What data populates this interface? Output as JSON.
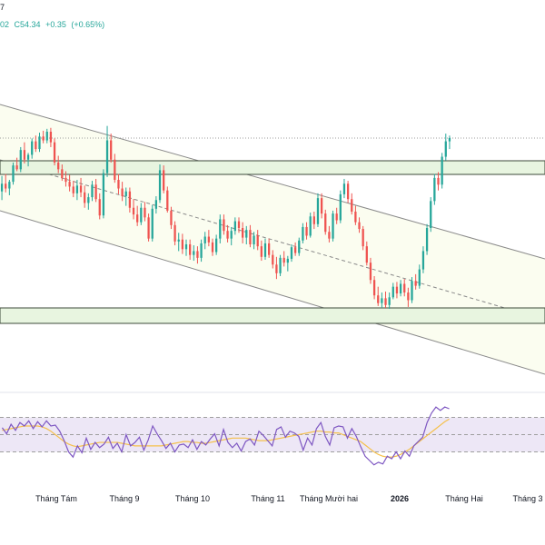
{
  "header": {
    "title_fragment": "7",
    "open_fragment": "02",
    "close_label": "C54.34",
    "change": "+0.35",
    "change_pct": "(+0.65%)"
  },
  "colors": {
    "up": "#26a69a",
    "down": "#ef5350",
    "rsi_line": "#7e57c2",
    "rsi_ma": "#f5c04b",
    "zone_fill": "#e8f5e0",
    "zone_border": "#3d4a3a",
    "channel_fill": "#fbfdf0",
    "channel_line": "#8a8a8a",
    "rsi_band": "#ede7f6"
  },
  "chart_data": [
    {
      "type": "candlestick",
      "x_axis_labels": [
        "Tháng Tám",
        "Tháng 9",
        "Tháng 10",
        "Tháng 11",
        "Tháng Mười hai",
        "2026",
        "Tháng Hai",
        "Tháng 3"
      ],
      "x_axis_bold": [
        "2026"
      ],
      "last_close": 54.34,
      "change": 0.35,
      "change_pct": 0.65,
      "annotations": [
        "resistance zone",
        "support zone",
        "descending channel",
        "channel midline (dashed)"
      ],
      "series": [
        {
          "name": "price",
          "ohlc": [
            [
              48.8,
              50.4,
              47.9,
              49.6
            ],
            [
              49.6,
              50.6,
              48.7,
              49.1
            ],
            [
              49.1,
              50.0,
              48.4,
              49.8
            ],
            [
              49.8,
              51.8,
              49.5,
              51.5
            ],
            [
              51.5,
              52.3,
              50.9,
              51.1
            ],
            [
              51.1,
              53.4,
              50.8,
              53.1
            ],
            [
              53.1,
              53.9,
              51.7,
              52.1
            ],
            [
              52.1,
              52.8,
              51.4,
              52.6
            ],
            [
              52.6,
              54.3,
              52.2,
              54.0
            ],
            [
              54.0,
              54.6,
              52.9,
              53.2
            ],
            [
              53.2,
              54.9,
              52.9,
              54.5
            ],
            [
              54.5,
              55.1,
              53.8,
              54.1
            ],
            [
              54.1,
              55.3,
              53.8,
              55.0
            ],
            [
              55.0,
              55.4,
              53.4,
              53.9
            ],
            [
              53.9,
              54.3,
              51.5,
              51.8
            ],
            [
              51.8,
              52.5,
              50.7,
              51.1
            ],
            [
              51.1,
              51.6,
              49.9,
              50.2
            ],
            [
              50.2,
              50.9,
              49.3,
              49.8
            ],
            [
              49.8,
              50.5,
              48.8,
              49.3
            ],
            [
              49.3,
              49.9,
              48.2,
              48.6
            ],
            [
              48.6,
              50.0,
              47.9,
              49.4
            ],
            [
              49.4,
              50.2,
              48.2,
              48.7
            ],
            [
              48.7,
              49.4,
              47.1,
              47.6
            ],
            [
              47.6,
              48.6,
              46.9,
              48.2
            ],
            [
              48.2,
              49.9,
              47.8,
              49.5
            ],
            [
              49.5,
              50.1,
              47.7,
              48.0
            ],
            [
              48.0,
              48.6,
              45.9,
              46.3
            ],
            [
              46.3,
              51.1,
              46.0,
              50.7
            ],
            [
              50.7,
              55.6,
              50.3,
              54.1
            ],
            [
              54.1,
              54.8,
              51.8,
              52.1
            ],
            [
              52.1,
              52.7,
              49.7,
              50.0
            ],
            [
              50.0,
              50.6,
              48.5,
              49.1
            ],
            [
              49.1,
              49.8,
              47.8,
              48.3
            ],
            [
              48.3,
              49.2,
              47.3,
              48.8
            ],
            [
              48.8,
              49.2,
              46.6,
              47.1
            ],
            [
              47.1,
              48.0,
              45.9,
              46.4
            ],
            [
              46.4,
              47.3,
              45.2,
              45.6
            ],
            [
              45.6,
              47.6,
              45.3,
              47.1
            ],
            [
              47.1,
              47.7,
              45.7,
              46.1
            ],
            [
              46.1,
              46.5,
              43.6,
              43.9
            ],
            [
              43.9,
              47.4,
              43.6,
              47.0
            ],
            [
              47.0,
              48.3,
              46.5,
              47.9
            ],
            [
              47.9,
              51.6,
              47.6,
              51.0
            ],
            [
              51.0,
              51.5,
              48.6,
              48.9
            ],
            [
              48.9,
              49.3,
              46.6,
              46.8
            ],
            [
              46.8,
              47.2,
              44.9,
              45.3
            ],
            [
              45.3,
              45.7,
              43.2,
              43.6
            ],
            [
              43.6,
              44.5,
              42.6,
              43.8
            ],
            [
              43.8,
              44.4,
              42.3,
              42.8
            ],
            [
              42.8,
              43.8,
              42.1,
              43.3
            ],
            [
              43.3,
              43.8,
              41.7,
              42.2
            ],
            [
              42.2,
              43.2,
              41.6,
              42.6
            ],
            [
              42.6,
              43.1,
              41.3,
              41.9
            ],
            [
              41.9,
              43.8,
              41.5,
              43.4
            ],
            [
              43.4,
              44.6,
              42.8,
              44.1
            ],
            [
              44.1,
              44.8,
              43.1,
              43.5
            ],
            [
              43.5,
              43.9,
              42.1,
              42.5
            ],
            [
              42.5,
              44.3,
              42.2,
              43.9
            ],
            [
              43.9,
              46.4,
              43.4,
              45.9
            ],
            [
              45.9,
              46.4,
              44.3,
              44.7
            ],
            [
              44.7,
              45.3,
              43.5,
              43.9
            ],
            [
              43.9,
              45.1,
              43.2,
              44.7
            ],
            [
              44.7,
              46.1,
              44.3,
              45.7
            ],
            [
              45.7,
              46.1,
              44.5,
              45.0
            ],
            [
              45.0,
              45.6,
              43.4,
              44.0
            ],
            [
              44.0,
              45.2,
              43.3,
              44.8
            ],
            [
              44.8,
              45.3,
              43.0,
              43.3
            ],
            [
              43.3,
              44.6,
              42.8,
              44.2
            ],
            [
              44.2,
              44.8,
              42.7,
              43.1
            ],
            [
              43.1,
              43.7,
              41.6,
              42.0
            ],
            [
              42.0,
              43.9,
              41.7,
              43.4
            ],
            [
              43.4,
              43.9,
              41.9,
              42.2
            ],
            [
              42.2,
              42.7,
              40.8,
              41.2
            ],
            [
              41.2,
              42.0,
              39.7,
              40.3
            ],
            [
              40.3,
              42.2,
              40.0,
              41.9
            ],
            [
              41.9,
              42.6,
              41.0,
              41.4
            ],
            [
              41.4,
              42.1,
              40.5,
              41.8
            ],
            [
              41.8,
              43.3,
              41.5,
              43.0
            ],
            [
              43.0,
              43.5,
              42.1,
              42.4
            ],
            [
              42.4,
              44.0,
              42.1,
              43.7
            ],
            [
              43.7,
              45.5,
              43.4,
              45.1
            ],
            [
              45.1,
              45.6,
              43.8,
              44.2
            ],
            [
              44.2,
              46.6,
              44.0,
              46.2
            ],
            [
              46.2,
              46.7,
              44.9,
              45.4
            ],
            [
              45.4,
              48.6,
              45.1,
              48.1
            ],
            [
              48.1,
              48.6,
              46.0,
              46.5
            ],
            [
              46.5,
              46.9,
              44.3,
              44.6
            ],
            [
              44.6,
              45.2,
              43.5,
              43.9
            ],
            [
              43.9,
              46.8,
              43.6,
              46.5
            ],
            [
              46.5,
              47.1,
              45.4,
              45.8
            ],
            [
              45.8,
              48.9,
              45.5,
              48.5
            ],
            [
              48.5,
              50.1,
              48.1,
              49.6
            ],
            [
              49.6,
              49.9,
              47.6,
              48.0
            ],
            [
              48.0,
              48.6,
              46.4,
              46.7
            ],
            [
              46.7,
              47.3,
              45.3,
              45.6
            ],
            [
              45.6,
              46.1,
              44.5,
              44.9
            ],
            [
              44.9,
              45.2,
              42.7,
              43.1
            ],
            [
              43.1,
              43.6,
              41.1,
              41.4
            ],
            [
              41.4,
              41.9,
              39.2,
              39.6
            ],
            [
              39.6,
              40.0,
              37.6,
              38.0
            ],
            [
              38.0,
              38.9,
              36.9,
              37.2
            ],
            [
              37.2,
              38.3,
              36.7,
              37.7
            ],
            [
              37.7,
              38.4,
              36.7,
              37.0
            ],
            [
              37.0,
              38.3,
              36.6,
              37.8
            ],
            [
              37.8,
              39.3,
              37.6,
              38.9
            ],
            [
              38.9,
              39.4,
              37.7,
              38.2
            ],
            [
              38.2,
              39.6,
              37.9,
              39.2
            ],
            [
              39.2,
              39.7,
              37.9,
              38.3
            ],
            [
              38.3,
              38.8,
              36.8,
              37.5
            ],
            [
              37.5,
              39.9,
              37.2,
              39.5
            ],
            [
              39.5,
              40.2,
              38.6,
              39.0
            ],
            [
              39.0,
              41.2,
              38.7,
              40.7
            ],
            [
              40.7,
              43.1,
              40.3,
              42.6
            ],
            [
              42.6,
              45.4,
              42.2,
              45.0
            ],
            [
              45.0,
              48.2,
              44.6,
              47.8
            ],
            [
              47.8,
              50.6,
              47.4,
              50.2
            ],
            [
              50.2,
              50.8,
              48.9,
              49.5
            ],
            [
              49.5,
              52.8,
              49.1,
              52.4
            ],
            [
              52.4,
              54.8,
              52.0,
              54.0
            ],
            [
              54.0,
              54.6,
              53.2,
              54.34
            ]
          ]
        }
      ]
    },
    {
      "type": "line",
      "name": "RSI",
      "ylim": [
        10,
        90
      ],
      "levels": [
        70,
        50,
        30
      ],
      "series": [
        {
          "name": "RSI",
          "values": [
            58,
            51,
            62,
            55,
            64,
            60,
            66,
            57,
            65,
            59,
            66,
            60,
            61,
            54,
            43,
            30,
            24,
            37,
            29,
            46,
            33,
            41,
            35,
            39,
            47,
            34,
            40,
            30,
            50,
            37,
            41,
            47,
            32,
            44,
            60,
            51,
            43,
            34,
            40,
            30,
            38,
            39,
            35,
            44,
            33,
            42,
            38,
            45,
            51,
            37,
            56,
            41,
            35,
            40,
            31,
            42,
            45,
            38,
            54,
            49,
            43,
            37,
            56,
            59,
            47,
            54,
            52,
            48,
            32,
            46,
            38,
            57,
            64,
            48,
            38,
            58,
            60,
            59,
            46,
            57,
            48,
            36,
            25,
            20,
            15,
            18,
            16,
            25,
            22,
            30,
            22,
            31,
            25,
            37,
            42,
            47,
            64,
            75,
            82,
            78,
            82,
            80
          ]
        },
        {
          "name": "RSI MA",
          "values": [
            55,
            56,
            57,
            58,
            59,
            60,
            60,
            60,
            60,
            59,
            57,
            54,
            50,
            46,
            42,
            39,
            37,
            36,
            37,
            38,
            39,
            40,
            41,
            41,
            41,
            41,
            41,
            40,
            39,
            38,
            37,
            37,
            37,
            37,
            37,
            37,
            37,
            38,
            39,
            40,
            41,
            42,
            42,
            41,
            41,
            40,
            40,
            41,
            42,
            43,
            44,
            45,
            46,
            46,
            46,
            46,
            45,
            44,
            43,
            43,
            43,
            44,
            45,
            46,
            47,
            48,
            49,
            50,
            51,
            52,
            53,
            54,
            54,
            53,
            53,
            52,
            52,
            50,
            48,
            46,
            44,
            42,
            38,
            34,
            30,
            27,
            25,
            24,
            24,
            25,
            27,
            30,
            33,
            37,
            41,
            45,
            49,
            53,
            57,
            61,
            65,
            68
          ]
        }
      ]
    }
  ]
}
